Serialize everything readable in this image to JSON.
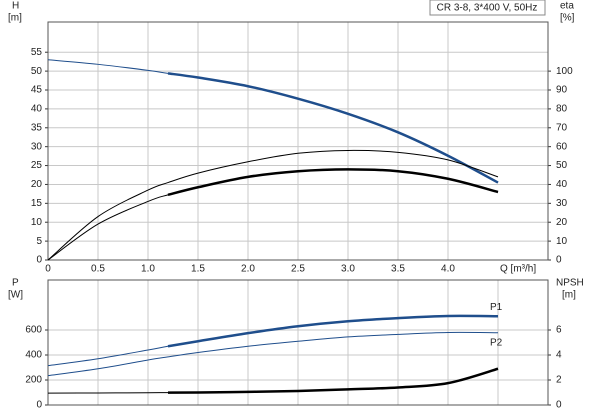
{
  "chart_data": [
    {
      "type": "line",
      "subtitle": "CR 3-8, 3*400 V, 50Hz",
      "y_label": "H",
      "y_unit": "[m]",
      "y2_label": "eta",
      "y2_unit": "[%]",
      "x_label": "Q [m³/h]",
      "x": [
        0,
        0.5,
        1,
        1.2,
        1.5,
        2,
        2.5,
        3,
        3.5,
        4,
        4.5
      ],
      "xlim": [
        0,
        5
      ],
      "xticks": [
        0,
        0.5,
        {
          "value": 1,
          "label": "1.0"
        },
        1.5,
        {
          "value": 2,
          "label": "2.0"
        },
        2.5,
        {
          "value": 3,
          "label": "3.0"
        },
        3.5,
        {
          "value": 4,
          "label": "4.0"
        }
      ],
      "ylim": [
        0,
        63
      ],
      "yticks": [
        0,
        5,
        10,
        15,
        20,
        25,
        30,
        35,
        40,
        45,
        50,
        55
      ],
      "y2lim": [
        0,
        126
      ],
      "y2ticks": [
        0,
        10,
        20,
        30,
        40,
        50,
        60,
        70,
        80,
        90,
        100
      ],
      "grid": true,
      "series": [
        {
          "color": "#1f4e8c",
          "bold_from": 1.2,
          "values": [
            53,
            51.8,
            50.2,
            49.4,
            48.3,
            46,
            42.7,
            38.7,
            33.8,
            27.6,
            20.5
          ]
        },
        {
          "color": "#000000",
          "axis": "y2",
          "values": [
            0,
            23,
            37,
            41,
            46,
            52,
            56.5,
            58,
            57,
            53,
            44
          ]
        },
        {
          "color": "#000000",
          "axis": "y2",
          "bold_from": 1.2,
          "values": [
            0,
            19,
            31,
            34.5,
            38.5,
            44,
            47,
            48,
            47,
            43,
            36
          ]
        }
      ]
    },
    {
      "type": "line",
      "y_label": "P",
      "y_unit": "[W]",
      "y2_label": "NPSH",
      "y2_unit": "[m]",
      "x": [
        0,
        0.5,
        1,
        1.2,
        1.5,
        2,
        2.5,
        3,
        3.5,
        4,
        4.5
      ],
      "xlim": [
        0,
        5
      ],
      "xticks": [
        0.5,
        1,
        1.5,
        2,
        2.5,
        3,
        3.5,
        4,
        4.5
      ],
      "ylim": [
        0,
        1000
      ],
      "yticks": [
        0,
        200,
        400,
        600
      ],
      "y2lim": [
        0,
        10
      ],
      "y2ticks": [
        0,
        2,
        4,
        6
      ],
      "grid": true,
      "series": [
        {
          "name": "P1",
          "color": "#1f4e8c",
          "bold_from": 1.2,
          "values": [
            315,
            370,
            440,
            470,
            510,
            575,
            630,
            670,
            695,
            712,
            710
          ]
        },
        {
          "name": "P2",
          "color": "#1f4e8c",
          "values": [
            235,
            290,
            360,
            385,
            420,
            470,
            510,
            545,
            565,
            580,
            578
          ]
        },
        {
          "color": "#000000",
          "axis": "y2",
          "bold_from": 1.2,
          "values": [
            0.95,
            0.96,
            0.98,
            0.99,
            1.0,
            1.05,
            1.12,
            1.25,
            1.4,
            1.75,
            2.9
          ]
        }
      ]
    }
  ]
}
